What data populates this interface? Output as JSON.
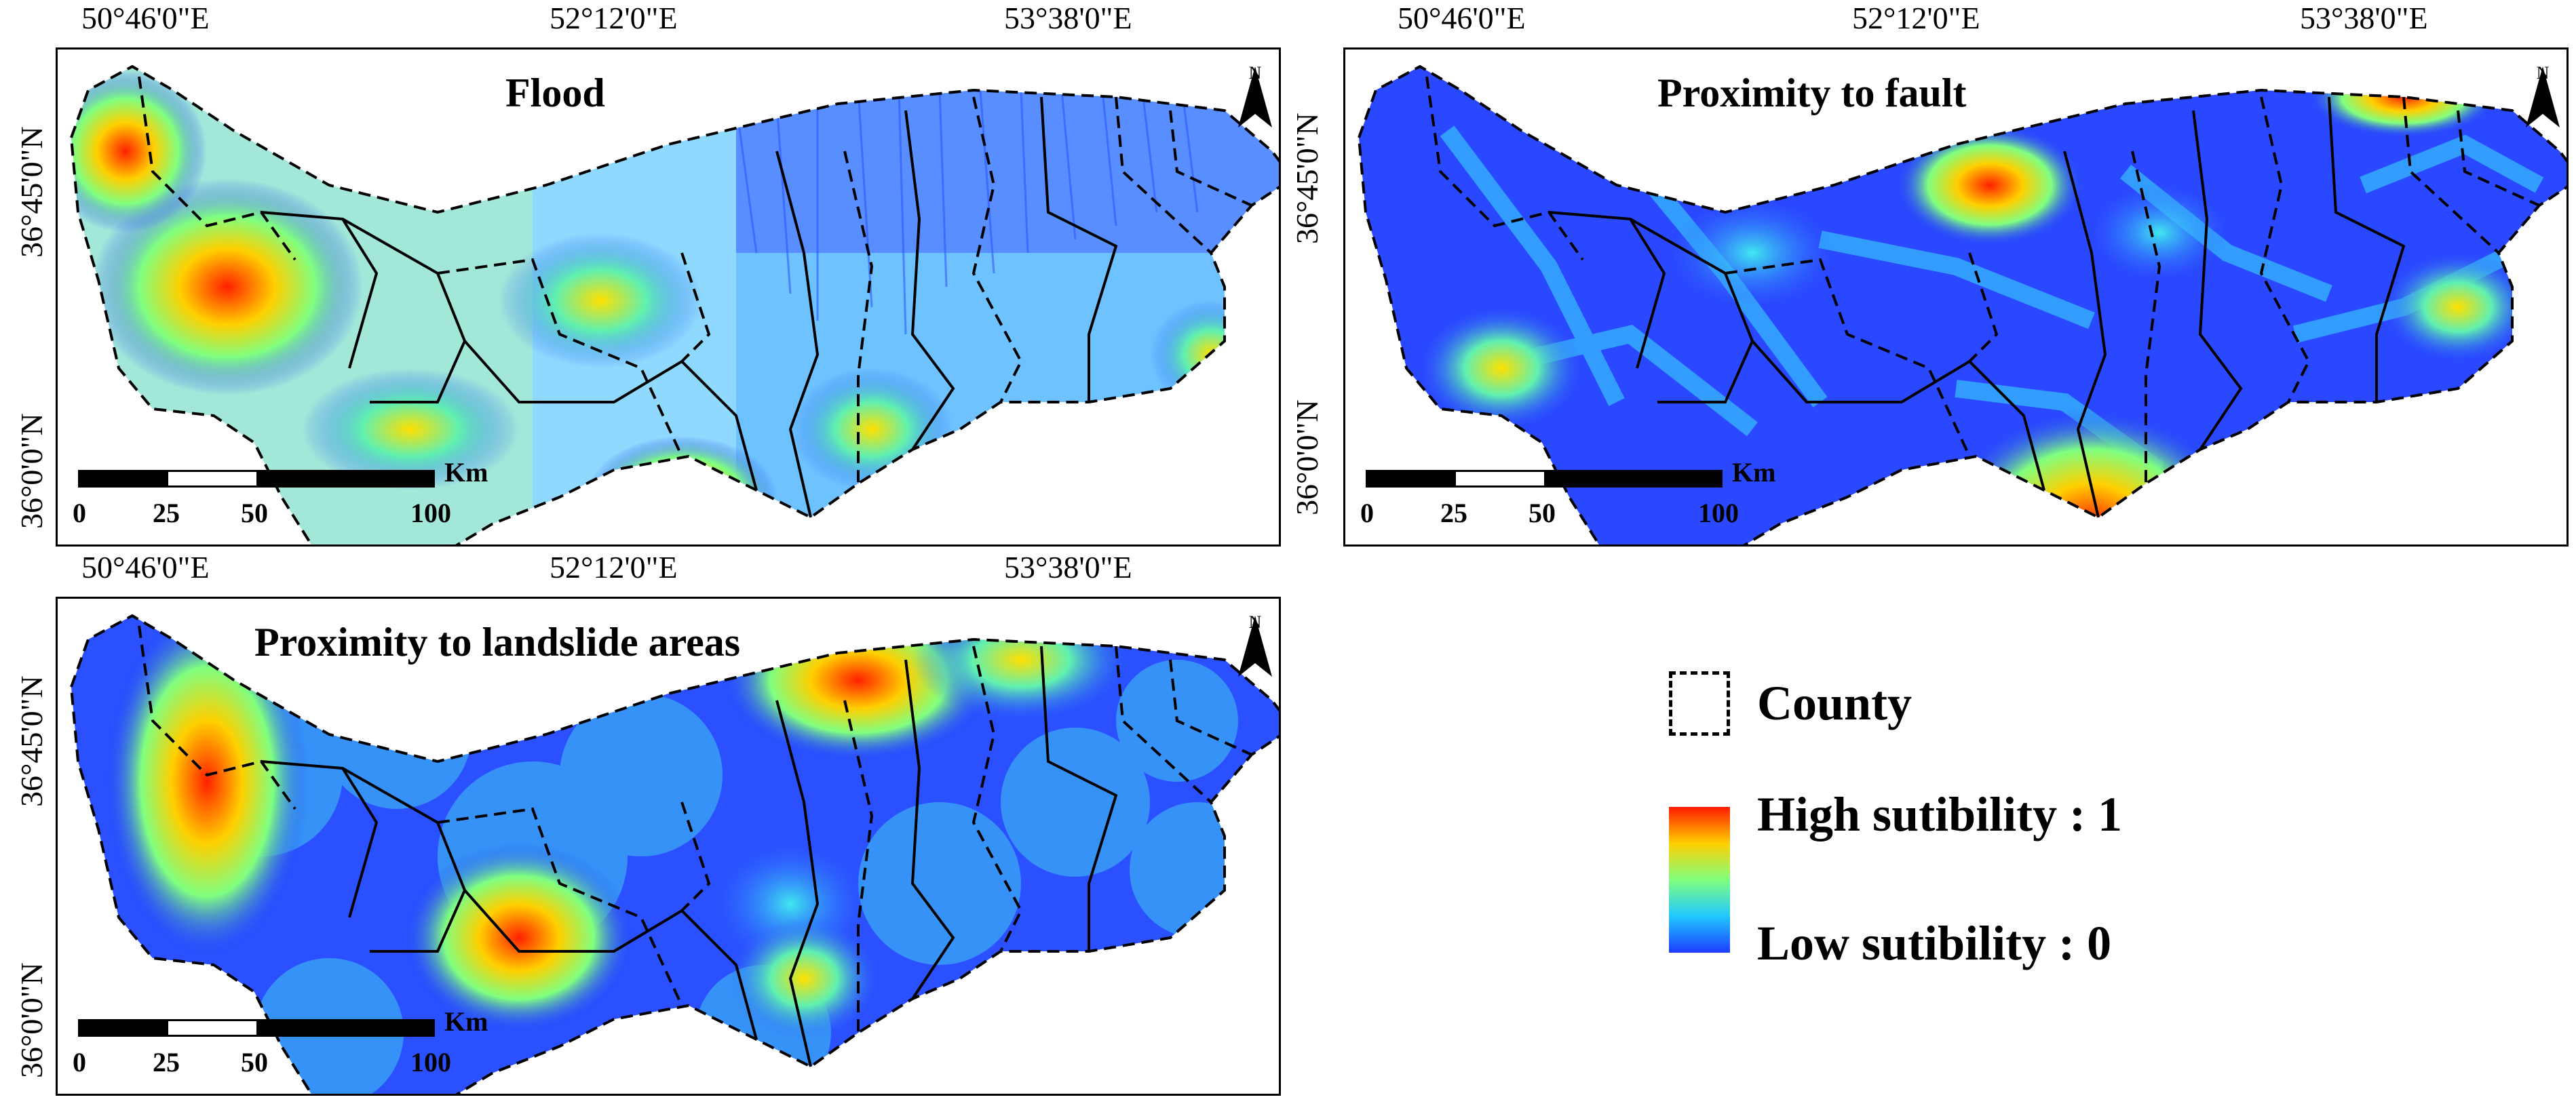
{
  "coords": {
    "lon1": "50°46'0\"E",
    "lon2": "52°12'0\"E",
    "lon3": "53°38'0\"E",
    "lat1": "36°45'0\"N",
    "lat2": "36°0'0\"N"
  },
  "scale": {
    "unit": "Km",
    "labels": [
      "0",
      "25",
      "50",
      "100"
    ]
  },
  "north_label": "N",
  "maps": [
    {
      "id": "flood",
      "title": "Flood"
    },
    {
      "id": "fault",
      "title": "Proximity to fault"
    },
    {
      "id": "landslide",
      "title": "Proximity to landslide areas"
    }
  ],
  "legend": {
    "county": "County",
    "high": "High sutibility : 1",
    "low": "Low sutibility : 0",
    "colors": {
      "high": "#ff1a00",
      "mid": "#80ff80",
      "low": "#1e3cff"
    }
  }
}
